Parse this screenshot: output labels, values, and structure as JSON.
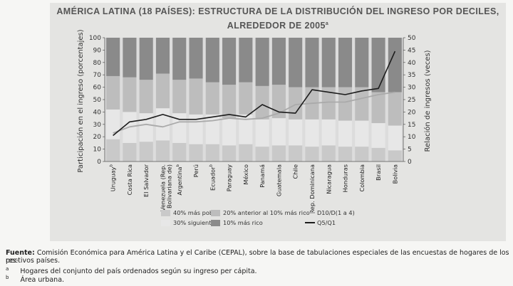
{
  "chart_data": {
    "type": "bar",
    "stacked": true,
    "title": "AMÉRICA LATINA (18 PAÍSES): ESTRUCTURA DE LA DISTRIBUCIÓN DEL INGRESO POR DECILES, ALREDEDOR DE 2005",
    "title_line1": "AMÉRICA LATINA (18 PAÍSES): ESTRUCTURA DE LA DISTRIBUCIÓN DEL INGRESO POR DECILES,",
    "title_line2": "ALREDEDOR DE 2005",
    "title_sup": "a",
    "ylabel": "Participación en el ingreso (porcentajes)",
    "y2label": "Relación de ingresos (veces)",
    "ylim": [
      0,
      100
    ],
    "y2lim": [
      0,
      50
    ],
    "yticks": [
      0,
      10,
      20,
      30,
      40,
      50,
      60,
      70,
      80,
      90,
      100
    ],
    "y2ticks": [
      0,
      5,
      10,
      15,
      20,
      25,
      30,
      35,
      40,
      45,
      50
    ],
    "categories": [
      "Uruguay",
      "Costa Rica",
      "El Salvador",
      "Venezuela (Rep. Bolivariana de)",
      "Argentina",
      "Perú",
      "Ecuador",
      "Paraguay",
      "México",
      "Panamá",
      "Guatemala",
      "Chile",
      "Rep. Dominicana",
      "Nicaragua",
      "Honduras",
      "Colombia",
      "Brasil",
      "Bolivia"
    ],
    "category_labels": [
      [
        "Uruguay",
        "b"
      ],
      [
        "Costa Rica",
        ""
      ],
      [
        "El Salvador",
        ""
      ],
      [
        "Venezuela (Rep.",
        ""
      ],
      [
        "Argentina",
        "b"
      ],
      [
        "Perú",
        ""
      ],
      [
        "Ecuador",
        "b"
      ],
      [
        "Paraguay",
        ""
      ],
      [
        "México",
        ""
      ],
      [
        "Panamá",
        ""
      ],
      [
        "Guatemala",
        ""
      ],
      [
        "Chile",
        ""
      ],
      [
        "Rep. Dominicana",
        ""
      ],
      [
        "Nicaragua",
        ""
      ],
      [
        "Honduras",
        ""
      ],
      [
        "Colombia",
        ""
      ],
      [
        "Brasil",
        ""
      ],
      [
        "Bolivia",
        ""
      ]
    ],
    "category_label2": [
      "",
      "",
      "",
      "Bolivariana de)",
      "",
      "",
      "",
      "",
      "",
      "",
      "",
      "",
      "",
      "",
      "",
      "",
      "",
      ""
    ],
    "series": [
      {
        "name": "40% más pobre",
        "values": [
          18,
          15,
          16,
          17,
          15,
          14,
          14,
          13,
          14,
          12,
          13,
          13,
          12,
          13,
          12,
          12,
          11,
          9
        ],
        "color": "#c9c9c9",
        "axis": "left"
      },
      {
        "name": "30% siguiente",
        "values": [
          24,
          25,
          23,
          26,
          24,
          24,
          24,
          22,
          24,
          22,
          22,
          21,
          22,
          21,
          21,
          21,
          20,
          20
        ],
        "color": "#e7e7e7",
        "axis": "left"
      },
      {
        "name": "20% anterior al 10% más rico",
        "values": [
          27,
          28,
          27,
          28,
          27,
          29,
          26,
          27,
          26,
          27,
          27,
          26,
          26,
          26,
          27,
          27,
          25,
          27
        ],
        "color": "#bdbdbd",
        "axis": "left"
      },
      {
        "name": "10% más rico",
        "values": [
          31,
          32,
          34,
          29,
          34,
          33,
          36,
          38,
          36,
          39,
          38,
          40,
          40,
          40,
          40,
          40,
          44,
          44
        ],
        "color": "#8a8a8a",
        "axis": "left"
      }
    ],
    "lines": [
      {
        "name": "D10/D(1 a 4)",
        "values": [
          11.5,
          14,
          15,
          14,
          16,
          16,
          16.5,
          17.5,
          17,
          17.5,
          19.5,
          23,
          23.5,
          24,
          24,
          25.5,
          27,
          28
        ],
        "color": "#aaaaaa",
        "axis": "right"
      },
      {
        "name": "Q5/Q1",
        "values": [
          10.5,
          16,
          17,
          19,
          17,
          17,
          18,
          19,
          18,
          23,
          20,
          19.5,
          29,
          28,
          27,
          28.5,
          29.5,
          44.5
        ],
        "color": "#1c1c1c",
        "axis": "right"
      }
    ],
    "legend": [
      {
        "label": "40% más pobre",
        "swatch": "#c9c9c9",
        "kind": "box"
      },
      {
        "label": "20% anterior al 10% más rico",
        "swatch": "#bdbdbd",
        "kind": "box"
      },
      {
        "label": "D10/D(1 a 4)",
        "swatch": "#aaaaaa",
        "kind": "line"
      },
      {
        "label": "30% siguiente",
        "swatch": "#e7e7e7",
        "kind": "box"
      },
      {
        "label": "10% más rico",
        "swatch": "#8a8a8a",
        "kind": "box"
      },
      {
        "label": "Q5/Q1",
        "swatch": "#1c1c1c",
        "kind": "line"
      }
    ],
    "legend_placement": "bottom",
    "grid": false
  },
  "footnotes": {
    "source_label": "Fuente:",
    "source_text": "Comisión Económica para América Latina y el Caribe (CEPAL), sobre la base de tabulaciones especiales de las encuestas de hogares de los res-",
    "source_text2": "pectivos países.",
    "note_a_mark": "a",
    "note_a": "Hogares del conjunto del país ordenados según su ingreso per cápita.",
    "note_b_mark": "b",
    "note_b": "Área urbana."
  }
}
